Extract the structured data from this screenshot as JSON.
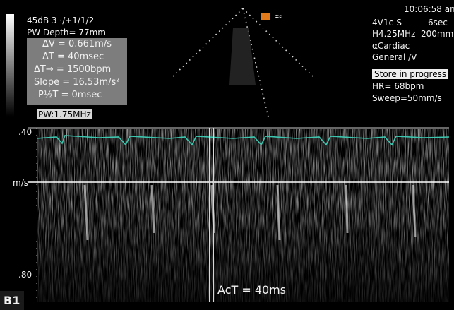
{
  "header": {
    "settings": [
      "45dB 3 ·/+1/1/2",
      "PW Depth= 77mm"
    ],
    "measurements": [
      "ΔV = 0.661m/s",
      "ΔT = 40msec",
      "ΔT→ = 1500bpm",
      "Slope = 16.53m/s²",
      "P½T = 0msec"
    ],
    "pw_frequency": "PW:1.75MHz"
  },
  "probe_info": {
    "time": "10:06:58 am",
    "probe": "4V1c-S",
    "sweep_time": "6sec",
    "frequency": "H4.25MHz",
    "depth": "200mm",
    "preset": "αCardiac",
    "mode": "General /V",
    "status": "Store in progress",
    "heart_rate": "HR= 68bpm",
    "sweep": "Sweep=50mm/s"
  },
  "scale": {
    "top": ".40",
    "unit": "m/s",
    "bottom": ".80"
  },
  "annotation": "AcT = 40ms",
  "panel_label": "B1"
}
